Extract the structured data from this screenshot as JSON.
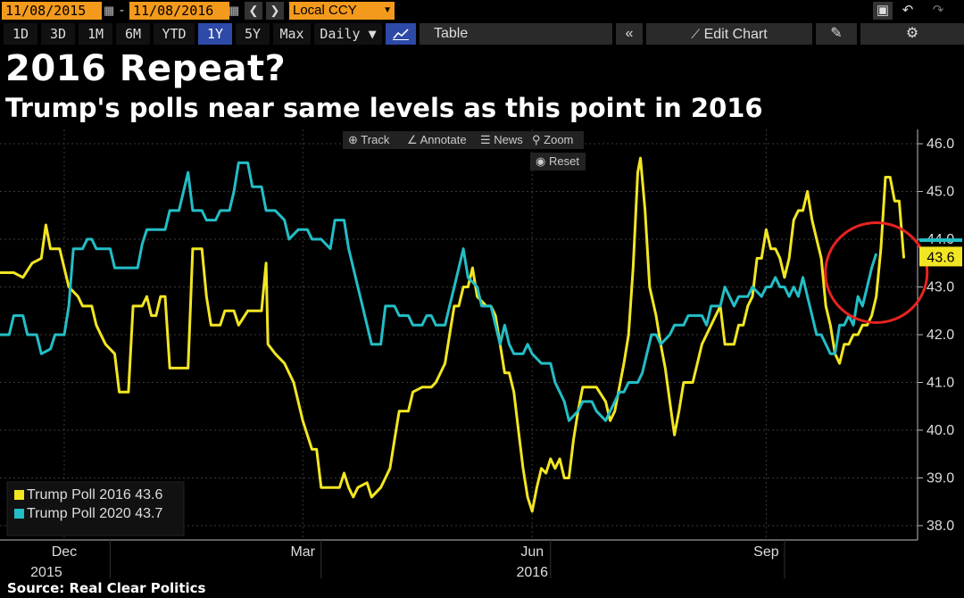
{
  "toolbar": {
    "start_date": "11/08/2015",
    "end_date": "11/08/2016",
    "date_separator": "-",
    "currency": "Local CCY",
    "ranges": [
      "1D",
      "3D",
      "1M",
      "6M",
      "YTD",
      "1Y",
      "5Y",
      "Max"
    ],
    "active_range": "1Y",
    "frequency": "Daily ▼",
    "table_label": "Table",
    "edit_chart_label": "Edit Chart"
  },
  "chart_tools": {
    "track": "Track",
    "annotate": "Annotate",
    "news": "News",
    "zoom": "Zoom",
    "reset": "Reset"
  },
  "headline": "2016 Repeat?",
  "subheadline": "Trump's polls near same levels as this point in 2016",
  "source": "Source: Real Clear Politics",
  "chart_data": {
    "type": "line",
    "ylim": [
      37.7,
      46.3
    ],
    "y_ticks": [
      "46.0",
      "45.0",
      "44.0",
      "43.0",
      "42.0",
      "41.0",
      "40.0",
      "39.0",
      "38.0"
    ],
    "x_ticks": [
      {
        "label": "Dec",
        "sublabel": "2015",
        "pos": 0.07
      },
      {
        "label": "Mar",
        "sublabel": "",
        "pos": 0.33
      },
      {
        "label": "Jun",
        "sublabel": "2016",
        "pos": 0.58
      },
      {
        "label": "Sep",
        "sublabel": "",
        "pos": 0.835
      }
    ],
    "grid": true,
    "legend_position": "bottom-left",
    "last_value_label": "43.6",
    "series": [
      {
        "name": "Trump Poll 2016 43.6",
        "color": "#f2e622",
        "values": [
          [
            0.0,
            43.3
          ],
          [
            0.015,
            43.3
          ],
          [
            0.025,
            43.2
          ],
          [
            0.035,
            43.5
          ],
          [
            0.045,
            43.6
          ],
          [
            0.05,
            44.3
          ],
          [
            0.055,
            43.8
          ],
          [
            0.065,
            43.8
          ],
          [
            0.075,
            43.0
          ],
          [
            0.085,
            42.8
          ],
          [
            0.09,
            42.6
          ],
          [
            0.1,
            42.6
          ],
          [
            0.105,
            42.2
          ],
          [
            0.115,
            41.8
          ],
          [
            0.125,
            41.6
          ],
          [
            0.13,
            40.8
          ],
          [
            0.14,
            40.8
          ],
          [
            0.145,
            42.6
          ],
          [
            0.155,
            42.6
          ],
          [
            0.16,
            42.8
          ],
          [
            0.165,
            42.4
          ],
          [
            0.17,
            42.4
          ],
          [
            0.175,
            42.8
          ],
          [
            0.18,
            42.8
          ],
          [
            0.185,
            41.3
          ],
          [
            0.205,
            41.3
          ],
          [
            0.21,
            43.8
          ],
          [
            0.22,
            43.8
          ],
          [
            0.225,
            42.8
          ],
          [
            0.23,
            42.2
          ],
          [
            0.24,
            42.2
          ],
          [
            0.245,
            42.5
          ],
          [
            0.255,
            42.5
          ],
          [
            0.26,
            42.2
          ],
          [
            0.27,
            42.5
          ],
          [
            0.285,
            42.5
          ],
          [
            0.29,
            43.5
          ],
          [
            0.292,
            41.8
          ],
          [
            0.3,
            41.6
          ],
          [
            0.31,
            41.4
          ],
          [
            0.32,
            41.0
          ],
          [
            0.33,
            40.2
          ],
          [
            0.34,
            39.6
          ],
          [
            0.345,
            39.6
          ],
          [
            0.35,
            38.8
          ],
          [
            0.37,
            38.8
          ],
          [
            0.375,
            39.1
          ],
          [
            0.38,
            38.8
          ],
          [
            0.385,
            38.6
          ],
          [
            0.39,
            38.8
          ],
          [
            0.4,
            38.9
          ],
          [
            0.405,
            38.6
          ],
          [
            0.415,
            38.8
          ],
          [
            0.42,
            39.0
          ],
          [
            0.425,
            39.2
          ],
          [
            0.43,
            39.8
          ],
          [
            0.435,
            40.4
          ],
          [
            0.445,
            40.4
          ],
          [
            0.45,
            40.8
          ],
          [
            0.46,
            40.9
          ],
          [
            0.47,
            40.9
          ],
          [
            0.475,
            41.0
          ],
          [
            0.485,
            41.4
          ],
          [
            0.49,
            42.0
          ],
          [
            0.495,
            42.6
          ],
          [
            0.5,
            42.6
          ],
          [
            0.505,
            43.0
          ],
          [
            0.51,
            43.0
          ],
          [
            0.515,
            43.4
          ],
          [
            0.52,
            42.8
          ],
          [
            0.53,
            42.6
          ],
          [
            0.535,
            42.6
          ],
          [
            0.54,
            42.4
          ],
          [
            0.545,
            41.8
          ],
          [
            0.55,
            41.2
          ],
          [
            0.555,
            41.2
          ],
          [
            0.56,
            40.8
          ],
          [
            0.565,
            40.0
          ],
          [
            0.57,
            39.2
          ],
          [
            0.575,
            38.6
          ],
          [
            0.58,
            38.3
          ],
          [
            0.585,
            38.8
          ],
          [
            0.59,
            39.2
          ],
          [
            0.595,
            39.1
          ],
          [
            0.6,
            39.4
          ],
          [
            0.605,
            39.2
          ],
          [
            0.61,
            39.4
          ],
          [
            0.615,
            39.0
          ],
          [
            0.62,
            39.0
          ],
          [
            0.625,
            39.8
          ],
          [
            0.63,
            40.4
          ],
          [
            0.635,
            40.9
          ],
          [
            0.65,
            40.9
          ],
          [
            0.66,
            40.6
          ],
          [
            0.665,
            40.2
          ],
          [
            0.67,
            40.4
          ],
          [
            0.675,
            40.9
          ],
          [
            0.68,
            41.4
          ],
          [
            0.685,
            42.0
          ],
          [
            0.69,
            43.4
          ],
          [
            0.695,
            45.4
          ],
          [
            0.698,
            45.7
          ],
          [
            0.703,
            44.6
          ],
          [
            0.708,
            43.0
          ],
          [
            0.715,
            42.4
          ],
          [
            0.72,
            41.8
          ],
          [
            0.725,
            41.3
          ],
          [
            0.73,
            40.6
          ],
          [
            0.735,
            39.9
          ],
          [
            0.74,
            40.4
          ],
          [
            0.745,
            41.0
          ],
          [
            0.755,
            41.0
          ],
          [
            0.76,
            41.4
          ],
          [
            0.765,
            41.8
          ],
          [
            0.775,
            42.2
          ],
          [
            0.785,
            42.6
          ],
          [
            0.79,
            41.8
          ],
          [
            0.8,
            41.8
          ],
          [
            0.805,
            42.2
          ],
          [
            0.81,
            42.2
          ],
          [
            0.815,
            42.6
          ],
          [
            0.82,
            42.8
          ],
          [
            0.825,
            43.6
          ],
          [
            0.83,
            43.6
          ],
          [
            0.835,
            44.2
          ],
          [
            0.84,
            43.8
          ],
          [
            0.845,
            43.8
          ],
          [
            0.85,
            43.6
          ],
          [
            0.855,
            43.2
          ],
          [
            0.86,
            43.6
          ],
          [
            0.865,
            44.4
          ],
          [
            0.87,
            44.6
          ],
          [
            0.875,
            44.6
          ],
          [
            0.88,
            45.0
          ],
          [
            0.885,
            44.4
          ],
          [
            0.89,
            44.0
          ],
          [
            0.895,
            43.6
          ],
          [
            0.9,
            42.6
          ],
          [
            0.905,
            42.2
          ],
          [
            0.91,
            41.6
          ],
          [
            0.915,
            41.4
          ],
          [
            0.92,
            41.8
          ],
          [
            0.925,
            41.8
          ],
          [
            0.93,
            42.0
          ],
          [
            0.935,
            42.0
          ],
          [
            0.94,
            42.2
          ],
          [
            0.945,
            42.2
          ],
          [
            0.95,
            42.4
          ],
          [
            0.955,
            42.8
          ],
          [
            0.96,
            43.8
          ],
          [
            0.965,
            45.3
          ],
          [
            0.97,
            45.3
          ],
          [
            0.975,
            44.8
          ],
          [
            0.98,
            44.8
          ],
          [
            0.985,
            43.6
          ]
        ]
      },
      {
        "name": "Trump Poll 2020 43.7",
        "color": "#23bec6",
        "values": [
          [
            0.0,
            42.0
          ],
          [
            0.01,
            42.0
          ],
          [
            0.015,
            42.4
          ],
          [
            0.025,
            42.4
          ],
          [
            0.03,
            42.0
          ],
          [
            0.04,
            42.0
          ],
          [
            0.045,
            41.6
          ],
          [
            0.055,
            41.7
          ],
          [
            0.06,
            42.0
          ],
          [
            0.07,
            42.0
          ],
          [
            0.075,
            42.6
          ],
          [
            0.08,
            43.8
          ],
          [
            0.09,
            43.8
          ],
          [
            0.095,
            44.0
          ],
          [
            0.1,
            44.0
          ],
          [
            0.105,
            43.8
          ],
          [
            0.115,
            43.8
          ],
          [
            0.12,
            43.8
          ],
          [
            0.125,
            43.4
          ],
          [
            0.15,
            43.4
          ],
          [
            0.155,
            43.9
          ],
          [
            0.16,
            44.2
          ],
          [
            0.18,
            44.2
          ],
          [
            0.185,
            44.6
          ],
          [
            0.195,
            44.6
          ],
          [
            0.2,
            45.0
          ],
          [
            0.205,
            45.4
          ],
          [
            0.21,
            44.6
          ],
          [
            0.22,
            44.6
          ],
          [
            0.225,
            44.4
          ],
          [
            0.235,
            44.4
          ],
          [
            0.24,
            44.6
          ],
          [
            0.25,
            44.6
          ],
          [
            0.255,
            45.0
          ],
          [
            0.26,
            45.6
          ],
          [
            0.27,
            45.6
          ],
          [
            0.275,
            45.1
          ],
          [
            0.285,
            45.1
          ],
          [
            0.29,
            44.6
          ],
          [
            0.3,
            44.6
          ],
          [
            0.31,
            44.4
          ],
          [
            0.315,
            44.0
          ],
          [
            0.325,
            44.2
          ],
          [
            0.335,
            44.2
          ],
          [
            0.34,
            44.0
          ],
          [
            0.35,
            44.0
          ],
          [
            0.36,
            43.8
          ],
          [
            0.365,
            44.4
          ],
          [
            0.375,
            44.4
          ],
          [
            0.38,
            43.8
          ],
          [
            0.385,
            43.4
          ],
          [
            0.39,
            43.0
          ],
          [
            0.395,
            42.6
          ],
          [
            0.4,
            42.2
          ],
          [
            0.405,
            41.8
          ],
          [
            0.415,
            41.8
          ],
          [
            0.42,
            42.6
          ],
          [
            0.43,
            42.6
          ],
          [
            0.435,
            42.4
          ],
          [
            0.445,
            42.4
          ],
          [
            0.45,
            42.2
          ],
          [
            0.46,
            42.2
          ],
          [
            0.465,
            42.4
          ],
          [
            0.47,
            42.4
          ],
          [
            0.475,
            42.2
          ],
          [
            0.485,
            42.2
          ],
          [
            0.49,
            42.6
          ],
          [
            0.495,
            43.0
          ],
          [
            0.5,
            43.4
          ],
          [
            0.505,
            43.8
          ],
          [
            0.51,
            43.2
          ],
          [
            0.52,
            43.0
          ],
          [
            0.525,
            42.6
          ],
          [
            0.535,
            42.6
          ],
          [
            0.54,
            42.2
          ],
          [
            0.545,
            41.8
          ],
          [
            0.55,
            42.2
          ],
          [
            0.555,
            41.8
          ],
          [
            0.56,
            41.6
          ],
          [
            0.57,
            41.6
          ],
          [
            0.575,
            41.8
          ],
          [
            0.58,
            41.6
          ],
          [
            0.59,
            41.4
          ],
          [
            0.6,
            41.4
          ],
          [
            0.605,
            41.0
          ],
          [
            0.61,
            40.8
          ],
          [
            0.615,
            40.6
          ],
          [
            0.62,
            40.2
          ],
          [
            0.625,
            40.3
          ],
          [
            0.63,
            40.4
          ],
          [
            0.635,
            40.6
          ],
          [
            0.645,
            40.6
          ],
          [
            0.65,
            40.4
          ],
          [
            0.66,
            40.2
          ],
          [
            0.665,
            40.4
          ],
          [
            0.67,
            40.6
          ],
          [
            0.675,
            40.8
          ],
          [
            0.68,
            40.8
          ],
          [
            0.685,
            41.0
          ],
          [
            0.695,
            41.0
          ],
          [
            0.7,
            41.2
          ],
          [
            0.705,
            41.6
          ],
          [
            0.71,
            42.0
          ],
          [
            0.715,
            42.0
          ],
          [
            0.72,
            41.8
          ],
          [
            0.73,
            42.0
          ],
          [
            0.735,
            42.2
          ],
          [
            0.745,
            42.2
          ],
          [
            0.75,
            42.4
          ],
          [
            0.765,
            42.4
          ],
          [
            0.77,
            42.2
          ],
          [
            0.775,
            42.6
          ],
          [
            0.785,
            42.6
          ],
          [
            0.79,
            43.0
          ],
          [
            0.795,
            42.8
          ],
          [
            0.8,
            42.6
          ],
          [
            0.805,
            42.8
          ],
          [
            0.815,
            42.8
          ],
          [
            0.82,
            43.0
          ],
          [
            0.83,
            42.8
          ],
          [
            0.835,
            43.0
          ],
          [
            0.84,
            43.0
          ],
          [
            0.845,
            43.2
          ],
          [
            0.85,
            43.0
          ],
          [
            0.855,
            43.0
          ],
          [
            0.86,
            42.8
          ],
          [
            0.865,
            43.0
          ],
          [
            0.87,
            42.8
          ],
          [
            0.875,
            43.2
          ],
          [
            0.88,
            42.8
          ],
          [
            0.885,
            42.4
          ],
          [
            0.89,
            42.0
          ],
          [
            0.895,
            42.0
          ],
          [
            0.9,
            41.8
          ],
          [
            0.905,
            41.6
          ],
          [
            0.91,
            41.6
          ],
          [
            0.915,
            42.2
          ],
          [
            0.92,
            42.2
          ],
          [
            0.925,
            42.4
          ],
          [
            0.93,
            42.2
          ],
          [
            0.935,
            42.8
          ],
          [
            0.94,
            42.6
          ],
          [
            0.945,
            43.0
          ],
          [
            0.95,
            43.4
          ],
          [
            0.955,
            43.7
          ]
        ]
      }
    ],
    "highlight_circle": {
      "x": 0.955,
      "y": 43.3,
      "color": "#e8231f"
    }
  }
}
